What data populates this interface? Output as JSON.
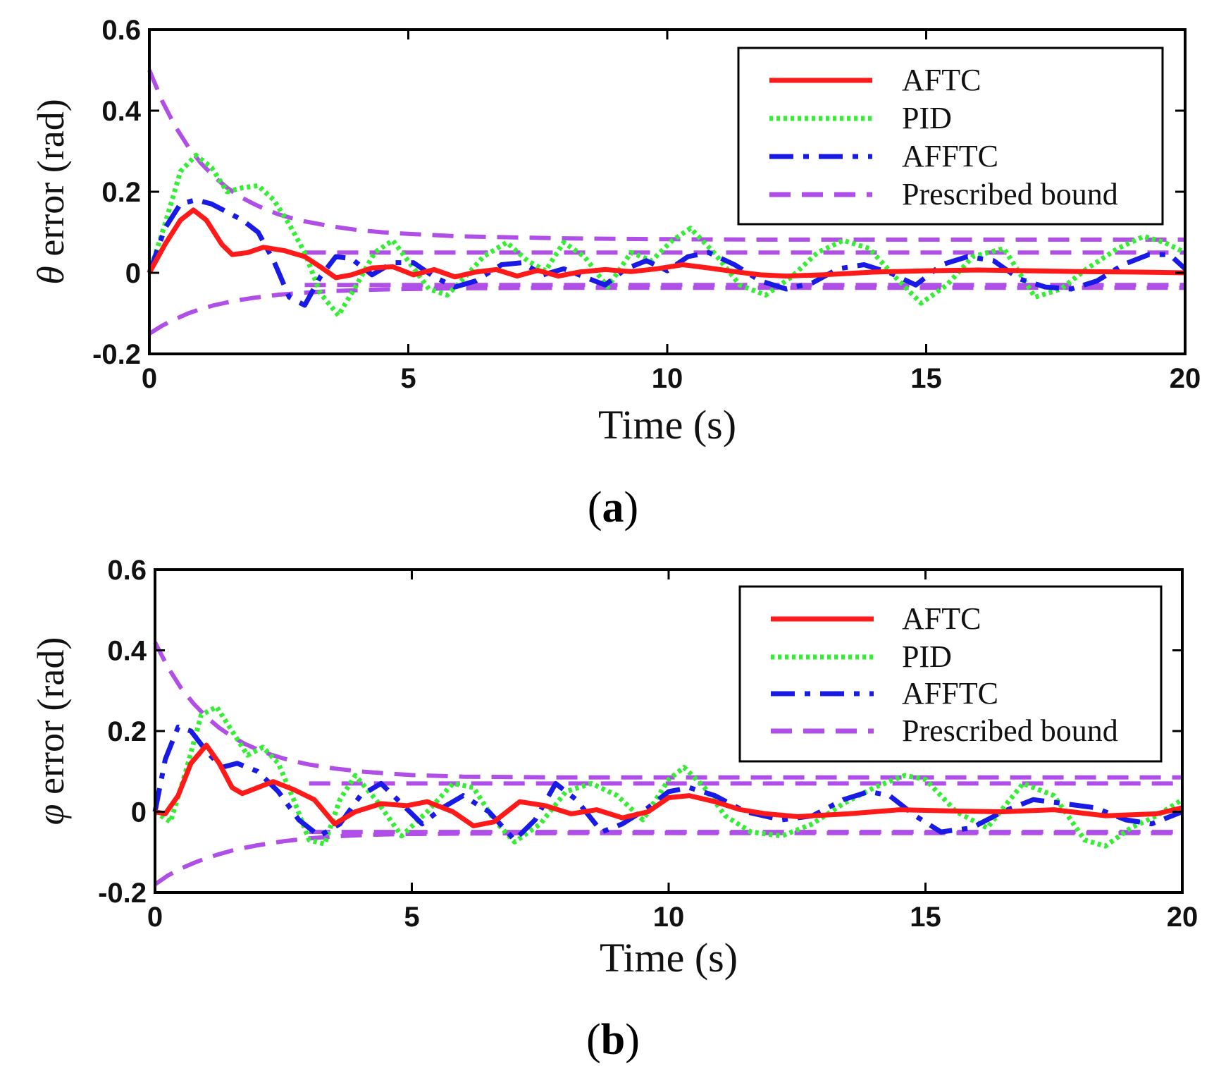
{
  "colors": {
    "AFTC": "#ff1a1a",
    "PID": "#33ee33",
    "AFFTC": "#1a1ae6",
    "bound": "#b04ee8",
    "axis": "#000000"
  },
  "chart_data": [
    {
      "type": "line",
      "panel": "a",
      "caption": {
        "open": "(",
        "letter": "a",
        "close": ")"
      },
      "xlabel": "Time (s)",
      "ylabel": {
        "symbol": "θ",
        "text": "error (rad)"
      },
      "xlim": [
        0,
        20
      ],
      "ylim": [
        -0.2,
        0.6
      ],
      "xticks": [
        0,
        5,
        10,
        15,
        20
      ],
      "yticks": [
        -0.2,
        0,
        0.2,
        0.4,
        0.6
      ],
      "xtick_labels": [
        "0",
        "5",
        "10",
        "15",
        "20"
      ],
      "ytick_labels": [
        "-0.2",
        "0",
        "0.2",
        "0.4",
        "0.6"
      ],
      "legend_position": "top-right",
      "legend": [
        "AFTC",
        "PID",
        "AFFTC",
        "Prescribed bound"
      ],
      "series": [
        {
          "name": "AFTC",
          "style": "solid",
          "x": [
            0,
            0.3,
            0.6,
            0.85,
            1.1,
            1.4,
            1.6,
            1.9,
            2.2,
            2.6,
            3.0,
            3.3,
            3.6,
            3.9,
            4.3,
            4.7,
            5.1,
            5.5,
            5.9,
            6.3,
            6.7,
            7.1,
            7.5,
            7.9,
            8.3,
            8.8,
            9.3,
            9.8,
            10.3,
            10.8,
            11.3,
            11.8,
            12.3,
            13,
            14,
            15,
            16,
            17,
            18,
            19,
            20
          ],
          "y": [
            0,
            0.07,
            0.13,
            0.155,
            0.13,
            0.07,
            0.045,
            0.05,
            0.063,
            0.055,
            0.04,
            0.015,
            -0.012,
            -0.005,
            0.012,
            0.015,
            -0.005,
            0.008,
            -0.01,
            0.002,
            0.008,
            -0.008,
            0.006,
            -0.008,
            0.002,
            0.008,
            0.003,
            0.01,
            0.02,
            0.012,
            0.003,
            -0.005,
            -0.008,
            -0.005,
            0.002,
            0.005,
            0.007,
            0.005,
            0.003,
            0.002,
            0
          ]
        },
        {
          "name": "PID",
          "style": "dotted",
          "x": [
            0,
            0.3,
            0.6,
            0.9,
            1.2,
            1.5,
            1.8,
            2.1,
            2.4,
            2.7,
            3.0,
            3.3,
            3.65,
            4.0,
            4.35,
            4.7,
            5.05,
            5.4,
            5.75,
            6.1,
            6.45,
            6.9,
            7.3,
            7.65,
            8.0,
            8.4,
            8.85,
            9.3,
            9.7,
            10.1,
            10.45,
            10.9,
            11.4,
            11.9,
            12.4,
            12.9,
            13.4,
            13.9,
            14.4,
            14.9,
            15.4,
            15.9,
            16.5,
            17.1,
            17.6,
            18.1,
            18.7,
            19.2,
            19.6,
            20
          ],
          "y": [
            0,
            0.12,
            0.25,
            0.29,
            0.26,
            0.2,
            0.21,
            0.215,
            0.18,
            0.12,
            0.05,
            -0.05,
            -0.105,
            -0.03,
            0.05,
            0.08,
            0.02,
            -0.04,
            -0.055,
            -0.01,
            0.04,
            0.075,
            0.03,
            0.005,
            0.075,
            0.04,
            -0.035,
            0.05,
            0.03,
            0.08,
            0.11,
            0.05,
            -0.03,
            -0.055,
            -0.01,
            0.05,
            0.08,
            0.06,
            -0.01,
            -0.075,
            -0.03,
            0.04,
            0.06,
            -0.06,
            -0.04,
            0.01,
            0.06,
            0.09,
            0.075,
            0.05
          ]
        },
        {
          "name": "AFFTC",
          "style": "dashdot",
          "x": [
            0,
            0.3,
            0.6,
            0.9,
            1.2,
            1.5,
            1.8,
            2.1,
            2.4,
            2.7,
            3.0,
            3.3,
            3.6,
            3.9,
            4.3,
            4.7,
            5.1,
            5.5,
            5.9,
            6.3,
            6.8,
            7.2,
            7.6,
            8.0,
            8.4,
            8.8,
            9.2,
            9.6,
            10.0,
            10.4,
            10.8,
            11.3,
            11.8,
            12.3,
            12.8,
            13.3,
            13.8,
            14.3,
            14.8,
            15.3,
            15.8,
            16.3,
            16.8,
            17.3,
            17.8,
            18.3,
            18.8,
            19.3,
            19.7,
            20
          ],
          "y": [
            0,
            0.11,
            0.17,
            0.18,
            0.17,
            0.15,
            0.13,
            0.1,
            0.03,
            -0.06,
            -0.08,
            -0.01,
            0.04,
            0.035,
            -0.005,
            0.025,
            0.025,
            -0.01,
            -0.035,
            -0.02,
            0.02,
            0.025,
            -0.005,
            0.01,
            -0.01,
            -0.03,
            0.01,
            0.03,
            0.005,
            0.04,
            0.05,
            0.02,
            -0.02,
            -0.04,
            -0.025,
            0.01,
            0.02,
            0.0,
            -0.03,
            0.02,
            0.04,
            0.03,
            -0.015,
            -0.035,
            -0.04,
            -0.02,
            0.02,
            0.045,
            0.045,
            0.01
          ]
        },
        {
          "name": "Prescribed bound (upper)",
          "style": "dashed",
          "x": [
            0,
            0.25,
            0.5,
            0.75,
            1,
            1.25,
            1.5,
            1.75,
            2,
            2.25,
            2.5,
            2.75,
            3,
            3.5,
            4,
            4.5,
            5,
            6,
            8,
            10,
            12,
            14,
            16,
            18,
            20
          ],
          "y": [
            0.5,
            0.423,
            0.361,
            0.311,
            0.27,
            0.237,
            0.21,
            0.188,
            0.171,
            0.156,
            0.144,
            0.135,
            0.127,
            0.115,
            0.106,
            0.1,
            0.096,
            0.09,
            0.085,
            0.083,
            0.082,
            0.082,
            0.082,
            0.082,
            0.082
          ]
        },
        {
          "name": "Prescribed bound (lower)",
          "style": "dashed",
          "x": [
            0,
            0.25,
            0.5,
            0.75,
            1,
            1.25,
            1.5,
            1.75,
            2,
            2.5,
            3,
            3.5,
            4,
            4.5,
            5,
            6,
            8,
            10,
            12,
            14,
            16,
            18,
            20
          ],
          "y": [
            -0.15,
            -0.13,
            -0.114,
            -0.1,
            -0.089,
            -0.08,
            -0.073,
            -0.067,
            -0.062,
            -0.054,
            -0.049,
            -0.045,
            -0.043,
            -0.041,
            -0.04,
            -0.038,
            -0.037,
            -0.037,
            -0.037,
            -0.037,
            -0.037,
            -0.037,
            -0.037
          ]
        },
        {
          "name": "Prescribed bound (steady upper)",
          "style": "dashed",
          "x": [
            3,
            20
          ],
          "y": [
            0.05,
            0.05
          ]
        },
        {
          "name": "Prescribed bound (steady lower)",
          "style": "dashed",
          "x": [
            3,
            20
          ],
          "y": [
            -0.03,
            -0.03
          ]
        }
      ]
    },
    {
      "type": "line",
      "panel": "b",
      "caption": {
        "open": "(",
        "letter": "b",
        "close": ")"
      },
      "xlabel": "Time (s)",
      "ylabel": {
        "symbol": "φ",
        "text": "error (rad)"
      },
      "xlim": [
        0,
        20
      ],
      "ylim": [
        -0.2,
        0.6
      ],
      "xticks": [
        0,
        5,
        10,
        15,
        20
      ],
      "yticks": [
        -0.2,
        0,
        0.2,
        0.4,
        0.6
      ],
      "xtick_labels": [
        "0",
        "5",
        "10",
        "15",
        "20"
      ],
      "ytick_labels": [
        "-0.2",
        "0",
        "0.2",
        "0.4",
        "0.6"
      ],
      "legend_position": "top-right",
      "legend": [
        "AFTC",
        "PID",
        "AFFTC",
        "Prescribed bound"
      ],
      "series": [
        {
          "name": "AFTC",
          "style": "solid",
          "x": [
            0,
            0.2,
            0.45,
            0.7,
            1.0,
            1.25,
            1.5,
            1.7,
            2.0,
            2.3,
            2.7,
            3.1,
            3.5,
            3.9,
            4.4,
            4.9,
            5.3,
            5.8,
            6.2,
            6.6,
            7.1,
            7.6,
            8.1,
            8.6,
            9.1,
            9.6,
            10.0,
            10.4,
            10.9,
            11.4,
            11.9,
            12.5,
            13.5,
            14.5,
            15.5,
            16.5,
            17.5,
            18.5,
            19.5,
            20
          ],
          "y": [
            0,
            -0.005,
            0.04,
            0.12,
            0.165,
            0.12,
            0.06,
            0.045,
            0.06,
            0.075,
            0.055,
            0.03,
            -0.03,
            0.0,
            0.02,
            0.015,
            0.025,
            0.0,
            -0.035,
            -0.025,
            0.025,
            0.015,
            -0.005,
            0.005,
            -0.015,
            0.0,
            0.035,
            0.04,
            0.025,
            0.005,
            -0.005,
            -0.012,
            -0.005,
            0.005,
            0.002,
            0.0,
            0.005,
            -0.01,
            -0.005,
            0.01
          ]
        },
        {
          "name": "PID",
          "style": "dotted",
          "x": [
            0,
            0.3,
            0.6,
            0.9,
            1.2,
            1.5,
            1.8,
            2.1,
            2.4,
            2.7,
            3.0,
            3.3,
            3.6,
            3.9,
            4.3,
            4.8,
            5.3,
            5.8,
            6.2,
            6.6,
            7.0,
            7.5,
            8.0,
            8.5,
            9.0,
            9.5,
            10.0,
            10.3,
            10.7,
            11.1,
            11.6,
            12.2,
            12.8,
            13.4,
            14.0,
            14.6,
            15.0,
            15.6,
            16.2,
            16.9,
            17.5,
            18.1,
            18.5,
            19.0,
            19.5,
            20
          ],
          "y": [
            0,
            -0.025,
            0.1,
            0.24,
            0.26,
            0.2,
            0.14,
            0.16,
            0.12,
            0.03,
            -0.07,
            -0.08,
            0.03,
            0.09,
            0.03,
            -0.06,
            0.0,
            0.07,
            0.06,
            -0.02,
            -0.075,
            -0.03,
            0.05,
            0.07,
            0.04,
            -0.02,
            0.08,
            0.11,
            0.06,
            -0.01,
            -0.05,
            -0.06,
            -0.03,
            0.02,
            0.06,
            0.09,
            0.08,
            0.0,
            -0.04,
            0.07,
            0.04,
            -0.07,
            -0.085,
            -0.04,
            -0.01,
            0.03
          ]
        },
        {
          "name": "AFFTC",
          "style": "dashdot",
          "x": [
            0,
            0.2,
            0.45,
            0.7,
            1.0,
            1.3,
            1.6,
            2.0,
            2.4,
            2.8,
            3.2,
            3.6,
            4.0,
            4.4,
            4.8,
            5.2,
            5.6,
            6.0,
            6.5,
            7.0,
            7.4,
            7.8,
            8.2,
            8.7,
            9.1,
            9.6,
            10.0,
            10.4,
            10.9,
            11.5,
            12.2,
            12.8,
            13.4,
            13.9,
            14.3,
            14.8,
            15.3,
            15.9,
            16.5,
            17.1,
            17.7,
            18.3,
            18.9,
            19.4,
            20
          ],
          "y": [
            0,
            0.13,
            0.21,
            0.2,
            0.15,
            0.11,
            0.12,
            0.1,
            0.05,
            -0.02,
            -0.06,
            -0.03,
            0.04,
            0.07,
            0.02,
            -0.03,
            0.01,
            0.04,
            0.0,
            -0.07,
            -0.02,
            0.07,
            0.03,
            -0.05,
            -0.03,
            0.01,
            0.05,
            0.06,
            0.04,
            0.0,
            -0.02,
            -0.01,
            0.03,
            0.05,
            0.04,
            -0.01,
            -0.05,
            -0.04,
            0.0,
            0.03,
            0.02,
            0.01,
            -0.02,
            -0.03,
            0.0
          ]
        },
        {
          "name": "Prescribed bound (upper)",
          "style": "dashed",
          "x": [
            0,
            0.25,
            0.5,
            0.75,
            1,
            1.25,
            1.5,
            1.75,
            2,
            2.25,
            2.5,
            2.75,
            3,
            3.5,
            4,
            4.5,
            5,
            6,
            8,
            10,
            12,
            14,
            16,
            18,
            20
          ],
          "y": [
            0.42,
            0.358,
            0.308,
            0.268,
            0.235,
            0.208,
            0.186,
            0.168,
            0.154,
            0.142,
            0.132,
            0.124,
            0.117,
            0.107,
            0.1,
            0.095,
            0.091,
            0.087,
            0.085,
            0.085,
            0.085,
            0.085,
            0.085,
            0.085,
            0.085
          ]
        },
        {
          "name": "Prescribed bound (lower)",
          "style": "dashed",
          "x": [
            0,
            0.25,
            0.5,
            0.75,
            1,
            1.25,
            1.5,
            1.75,
            2,
            2.5,
            3,
            3.5,
            4,
            4.5,
            5,
            6,
            8,
            10,
            12,
            14,
            16,
            18,
            20
          ],
          "y": [
            -0.18,
            -0.158,
            -0.141,
            -0.127,
            -0.115,
            -0.105,
            -0.096,
            -0.089,
            -0.083,
            -0.073,
            -0.066,
            -0.061,
            -0.058,
            -0.056,
            -0.055,
            -0.054,
            -0.053,
            -0.053,
            -0.053,
            -0.053,
            -0.053,
            -0.053,
            -0.053
          ]
        },
        {
          "name": "Prescribed bound (steady upper)",
          "style": "dashed",
          "x": [
            3,
            20
          ],
          "y": [
            0.07,
            0.07
          ]
        },
        {
          "name": "Prescribed bound (steady lower)",
          "style": "dashed",
          "x": [
            3,
            20
          ],
          "y": [
            -0.05,
            -0.05
          ]
        }
      ]
    }
  ]
}
